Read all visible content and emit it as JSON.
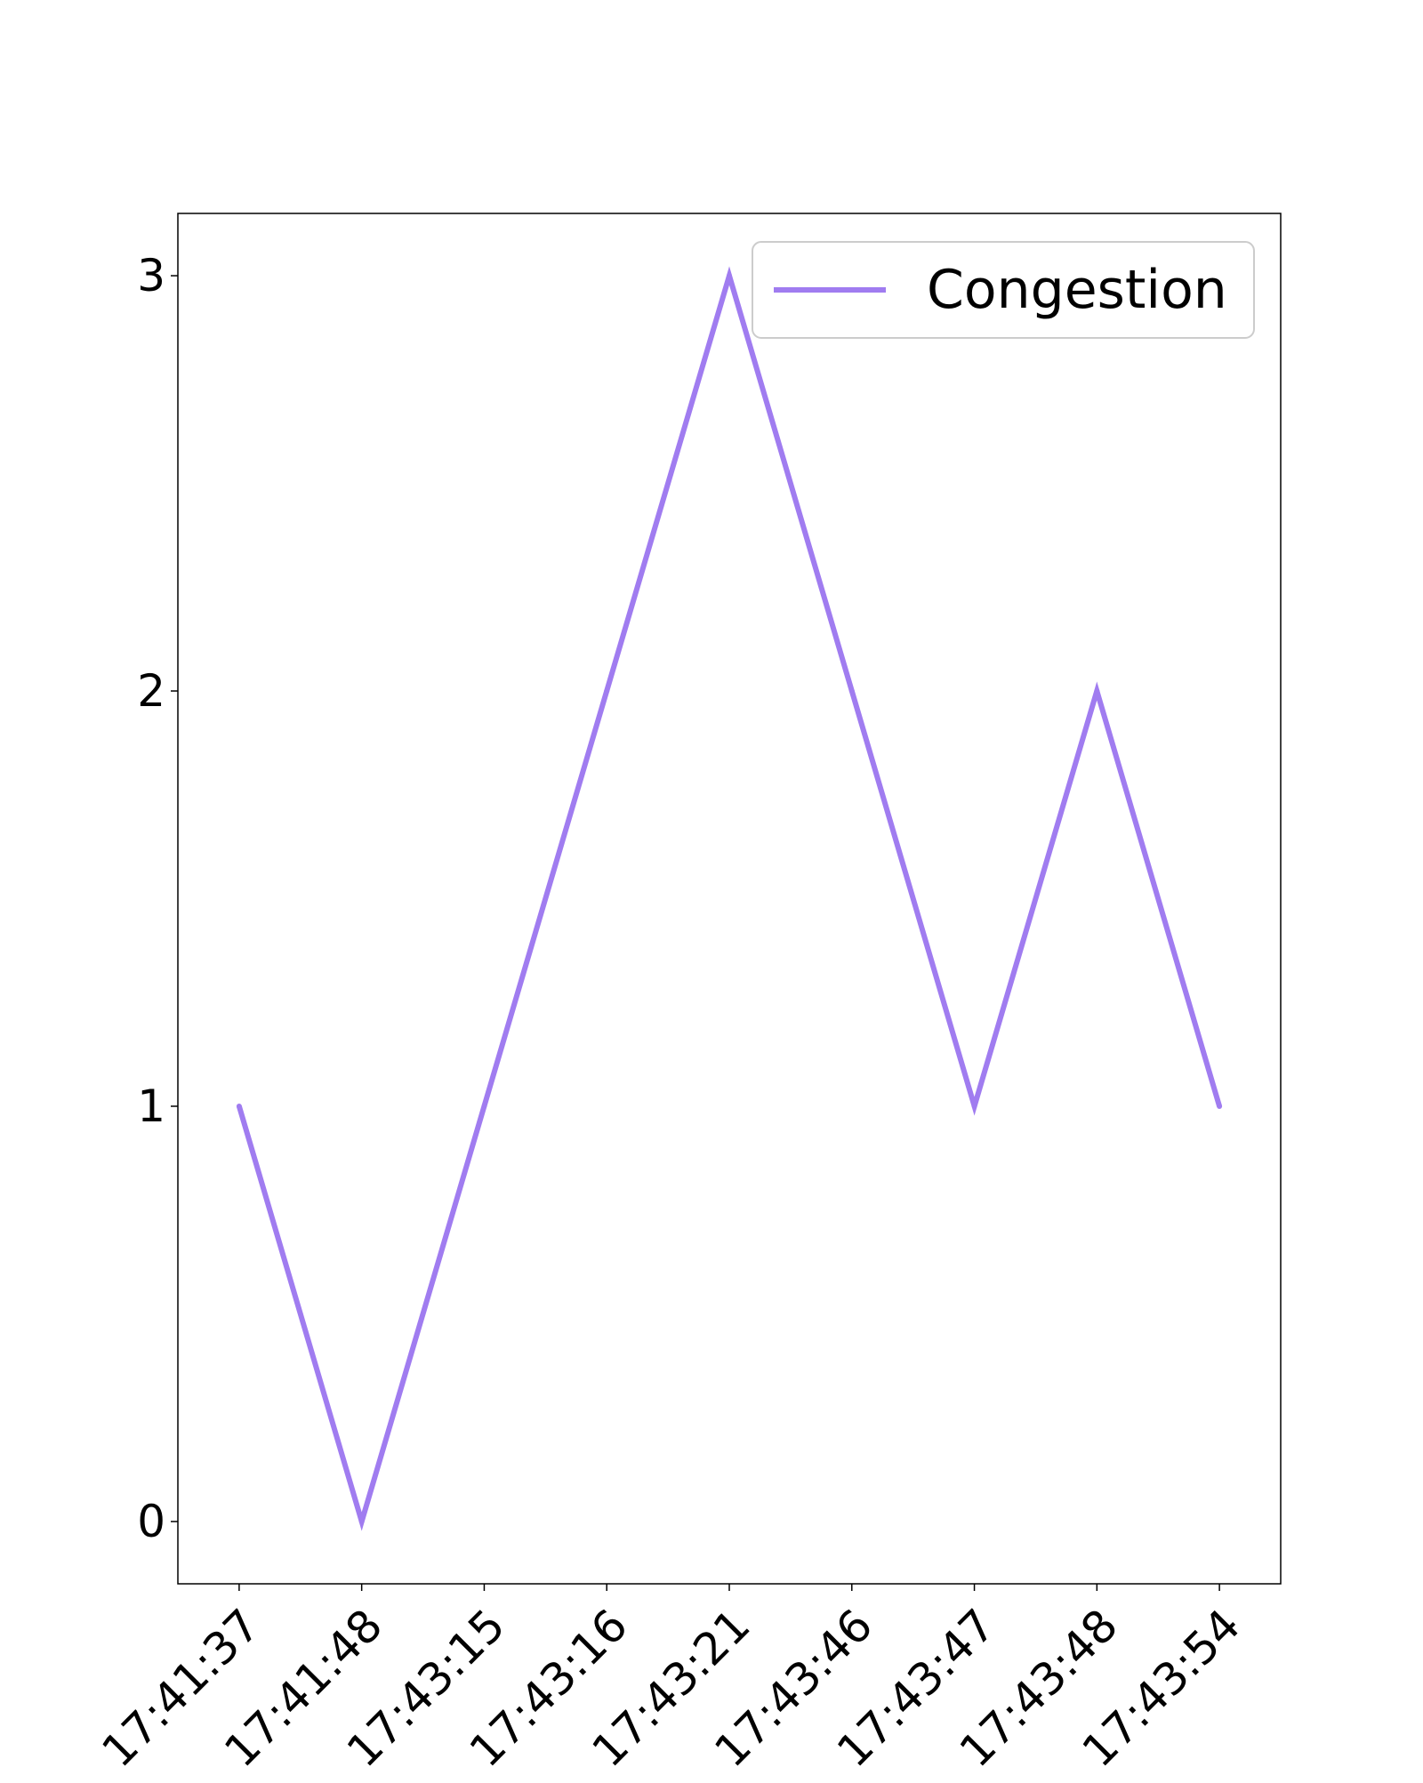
{
  "chart_data": {
    "type": "line",
    "title": "",
    "xlabel": "",
    "ylabel": "",
    "categories": [
      "17:41:37",
      "17:41:48",
      "17:43:15",
      "17:43:16",
      "17:43:21",
      "17:43:46",
      "17:43:47",
      "17:43:48",
      "17:43:54"
    ],
    "series": [
      {
        "name": "Congestion",
        "color": "#a07cf0",
        "values": [
          1,
          0,
          1,
          2,
          3,
          2,
          1,
          2,
          1
        ]
      }
    ],
    "ylim": [
      -0.15,
      3.15
    ],
    "yticks": [
      0,
      1,
      2,
      3
    ],
    "grid": false,
    "legend": {
      "position": "top-right"
    }
  }
}
